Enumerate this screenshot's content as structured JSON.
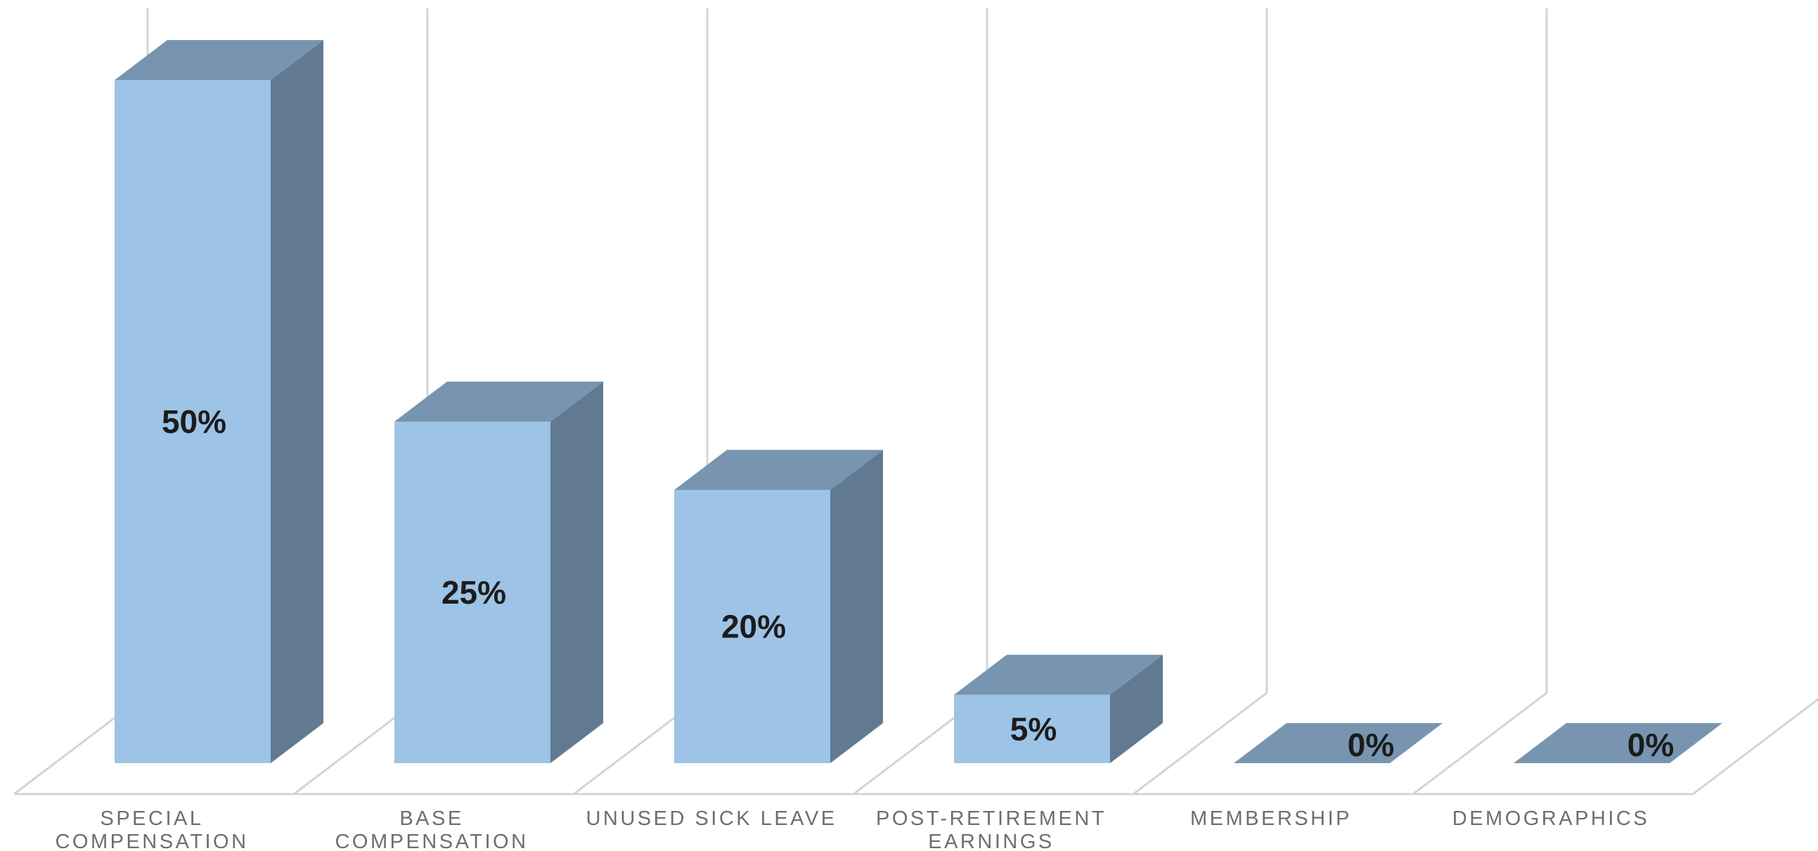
{
  "chart_data": {
    "type": "bar",
    "style": "3d-column",
    "categories": [
      [
        "SPECIAL",
        "COMPENSATION"
      ],
      [
        "BASE",
        "COMPENSATION"
      ],
      [
        "UNUSED SICK LEAVE"
      ],
      [
        "POST-RETIREMENT",
        "EARNINGS"
      ],
      [
        "MEMBERSHIP"
      ],
      [
        "DEMOGRAPHICS"
      ]
    ],
    "values": [
      50,
      25,
      20,
      5,
      0,
      0
    ],
    "data_labels": [
      "50%",
      "25%",
      "20%",
      "5%",
      "0%",
      "0%"
    ],
    "unit": "%",
    "ylim": [
      0,
      50
    ],
    "grid": true,
    "legend": "none",
    "colors": {
      "front": "#9dc3e6",
      "top": "#7795b0",
      "side": "#627a91",
      "grid": "#d4d4d4",
      "label": "#6e6e6e",
      "value_label": "#1c1c1c"
    }
  }
}
